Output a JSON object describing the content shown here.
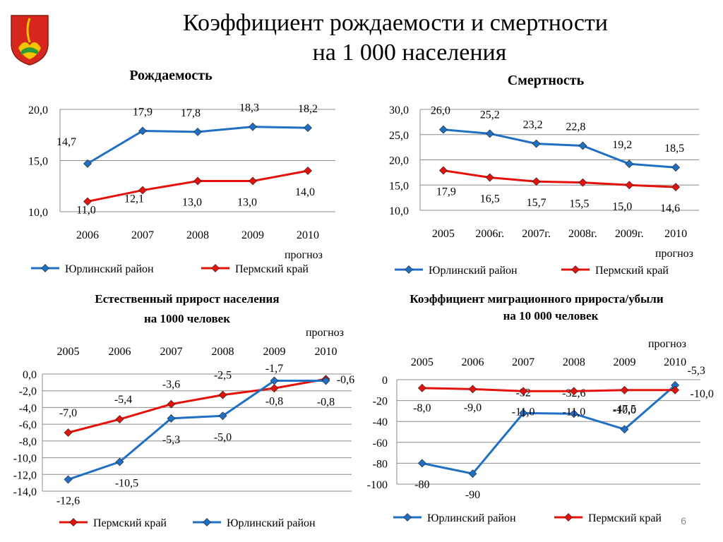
{
  "page": {
    "title_line1": "Коэффициент рождаемости и смертности",
    "title_line2": "на 1 000 населения",
    "page_number": "6"
  },
  "colors": {
    "perm": "#e3120b",
    "yurla": "#1f6fc2"
  },
  "chart_data": [
    {
      "id": "birth",
      "type": "line",
      "title": "Рождаемость",
      "categories": [
        "2006",
        "2007",
        "2008",
        "2009",
        "2010"
      ],
      "x_note": "прогноз",
      "ylim": [
        10,
        20
      ],
      "yticks": [
        "10,0",
        "15,0",
        "20,0"
      ],
      "grid": true,
      "legend_position": "bottom",
      "series": [
        {
          "name": "Пермский  край",
          "color": "#e3120b",
          "values": [
            11.0,
            12.1,
            13.0,
            13.0,
            14.0
          ],
          "labels": [
            "11,0",
            "12,1",
            "13,0",
            "13,0",
            "14,0"
          ]
        },
        {
          "name": "Юрлинский район",
          "color": "#1f6fc2",
          "values": [
            14.7,
            17.9,
            17.8,
            18.3,
            18.2
          ],
          "labels": [
            "14,7",
            "17,9",
            "17,8",
            "18,3",
            "18,2"
          ]
        }
      ]
    },
    {
      "id": "death",
      "type": "line",
      "title": "Смертность",
      "categories": [
        "2005",
        "2006г.",
        "2007г.",
        "2008г.",
        "2009г.",
        "2010"
      ],
      "x_note": "прогноз",
      "ylim": [
        10,
        30
      ],
      "yticks": [
        "10,0",
        "15,0",
        "20,0",
        "25,0",
        "30,0"
      ],
      "grid": true,
      "legend_position": "bottom",
      "series": [
        {
          "name": "Юрлинский район",
          "color": "#1f6fc2",
          "values": [
            26.0,
            25.2,
            23.2,
            22.8,
            19.2,
            18.5
          ],
          "labels": [
            "26,0",
            "25,2",
            "23,2",
            "22,8",
            "19,2",
            "18,5"
          ]
        },
        {
          "name": "Пермский край",
          "color": "#e3120b",
          "values": [
            17.9,
            16.5,
            15.7,
            15.5,
            15.0,
            14.6
          ],
          "labels": [
            "17,9",
            "16,5",
            "15,7",
            "15,5",
            "15,0",
            "14,6"
          ]
        }
      ]
    },
    {
      "id": "natural",
      "type": "line",
      "title_line1": "Естественный прирост населения",
      "title_line2": "на 1000 человек",
      "categories": [
        "2005",
        "2006",
        "2007",
        "2008",
        "2009",
        "2010"
      ],
      "x_note": "прогноз",
      "ylim": [
        -14,
        0
      ],
      "yticks": [
        "-14,0",
        "-12,0",
        "-10,0",
        "-8,0",
        "-6,0",
        "-4,0",
        "-2,0",
        "0,0"
      ],
      "grid": true,
      "legend_position": "bottom",
      "series": [
        {
          "name": "Пермский край",
          "color": "#e3120b",
          "values": [
            -7.0,
            -5.4,
            -3.6,
            -2.5,
            -1.7,
            -0.6
          ],
          "labels": [
            "-7,0",
            "-5,4",
            "-3,6",
            "-2,5",
            "-1,7",
            "-0,6"
          ]
        },
        {
          "name": "Юрлинский район",
          "color": "#1f6fc2",
          "values": [
            -12.6,
            -10.5,
            -5.3,
            -5.0,
            -0.8,
            -0.8
          ],
          "labels": [
            "-12,6",
            "-10,5",
            "-5,3",
            "-5,0",
            "-0,8",
            "-0,8"
          ]
        }
      ]
    },
    {
      "id": "migration",
      "type": "line",
      "title_line1": "Коэффициент миграционного прироста/убыли",
      "title_line2": "на 10 000 человек",
      "categories": [
        "2005",
        "2006",
        "2007",
        "2008",
        "2009",
        "2010"
      ],
      "x_note": "прогноз",
      "ylim": [
        -100,
        0
      ],
      "yticks": [
        "-100",
        "-80",
        "-60",
        "-40",
        "-20",
        "0"
      ],
      "grid": true,
      "legend_position": "bottom",
      "series": [
        {
          "name": "Юрлинский район",
          "color": "#1f6fc2",
          "values": [
            -80,
            -90,
            -32,
            -32.6,
            -47.5,
            -5.3
          ],
          "labels": [
            "-80",
            "-90",
            "-32",
            "-32,6",
            "-47,5",
            "-5,3"
          ]
        },
        {
          "name": "Пермский край",
          "color": "#e3120b",
          "values": [
            -8.0,
            -9.0,
            -11.0,
            -11.0,
            -10.0,
            -10.0
          ],
          "labels": [
            "-8,0",
            "-9,0",
            "-11,0",
            "-11,0",
            "-10,0",
            "-10,0"
          ]
        }
      ]
    }
  ]
}
